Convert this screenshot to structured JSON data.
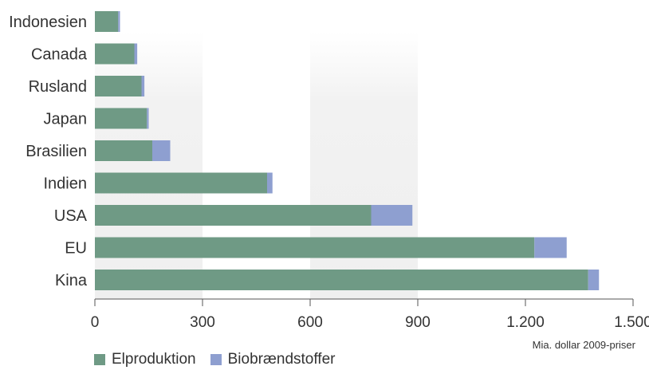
{
  "chart_data": {
    "type": "bar",
    "orientation": "horizontal",
    "stacked": true,
    "categories": [
      "Indonesien",
      "Canada",
      "Rusland",
      "Japan",
      "Brasilien",
      "Indien",
      "USA",
      "EU",
      "Kina"
    ],
    "series": [
      {
        "name": "Elproduktion",
        "color": "#6f9a85",
        "values": [
          65,
          110,
          130,
          145,
          160,
          480,
          770,
          1225,
          1375
        ]
      },
      {
        "name": "Biobrændstoffer",
        "color": "#8e9fd0",
        "values": [
          5,
          8,
          8,
          5,
          50,
          15,
          115,
          90,
          30
        ]
      }
    ],
    "xlim": [
      0,
      1500
    ],
    "xticks": [
      0,
      300,
      600,
      900,
      1200,
      1500
    ],
    "xtick_labels": [
      "0",
      "300",
      "600",
      "900",
      "1.200",
      "1.500"
    ],
    "xlabel": "Mia. dollar 2009-priser",
    "legend_position": "bottom-left",
    "shaded_bands": [
      [
        0,
        300
      ],
      [
        600,
        900
      ]
    ]
  }
}
